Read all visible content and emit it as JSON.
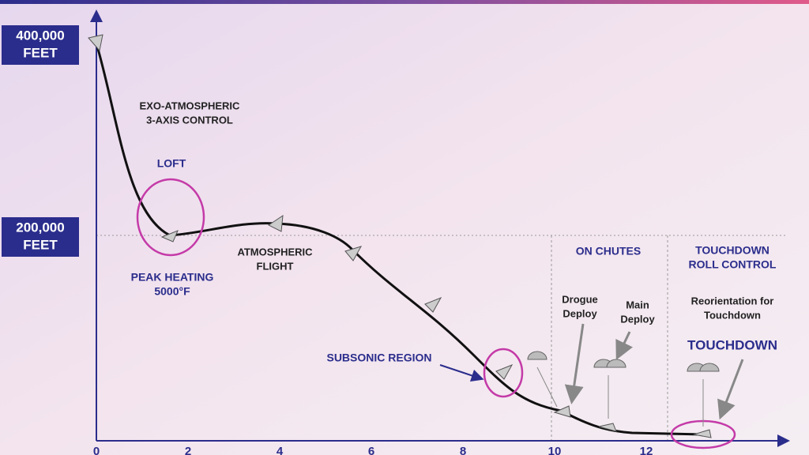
{
  "axis": {
    "y_labels": [
      {
        "value": "400,000",
        "unit": "FEET"
      },
      {
        "value": "200,000",
        "unit": "FEET"
      }
    ],
    "x_ticks": [
      0,
      2,
      4,
      6,
      8,
      10,
      12
    ]
  },
  "labels": [
    {
      "lines": [
        "EXO-ATMOSPHERIC",
        "3-AXIS CONTROL"
      ]
    },
    {
      "lines": [
        "LOFT"
      ]
    },
    {
      "lines": [
        "PEAK HEATING",
        "5000°F"
      ]
    },
    {
      "lines": [
        "ATMOSPHERIC",
        "FLIGHT"
      ]
    },
    {
      "lines": [
        "SUBSONIC REGION"
      ]
    },
    {
      "lines": [
        "ON CHUTES"
      ]
    },
    {
      "lines": [
        "Drogue",
        "Deploy"
      ]
    },
    {
      "lines": [
        "Main",
        "Deploy"
      ]
    },
    {
      "lines": [
        "TOUCHDOWN",
        "ROLL CONTROL"
      ]
    },
    {
      "lines": [
        "Reorientation for",
        "Touchdown"
      ]
    },
    {
      "lines": [
        "TOUCHDOWN"
      ]
    }
  ]
}
